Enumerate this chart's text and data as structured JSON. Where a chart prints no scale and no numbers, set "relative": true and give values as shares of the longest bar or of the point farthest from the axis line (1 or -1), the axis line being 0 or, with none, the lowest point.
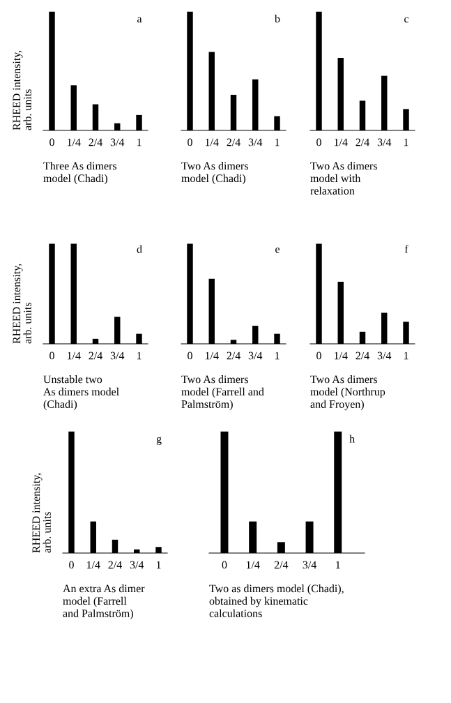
{
  "chart_data": [
    {
      "type": "bar",
      "relative": true,
      "categories": [
        "0",
        "1/4",
        "2/4",
        "3/4",
        "1"
      ],
      "values": [
        1,
        0.38,
        0.22,
        0.06,
        0.13
      ],
      "color": "#000000",
      "ylabel": "RHEED intensity,\narb. units",
      "xlabel": "Three As dimers\nmodel (Chadi)",
      "annotations": [
        "a"
      ],
      "grid": false,
      "legend": false
    },
    {
      "type": "bar",
      "relative": true,
      "categories": [
        "0",
        "1/4",
        "2/4",
        "3/4",
        "1"
      ],
      "values": [
        1,
        0.66,
        0.3,
        0.43,
        0.12
      ],
      "color": "#000000",
      "xlabel": "Two As dimers\nmodel (Chadi)",
      "annotations": [
        "b"
      ],
      "grid": false,
      "legend": false
    },
    {
      "type": "bar",
      "relative": true,
      "categories": [
        "0",
        "1/4",
        "2/4",
        "3/4",
        "1"
      ],
      "values": [
        1,
        0.61,
        0.25,
        0.46,
        0.18
      ],
      "color": "#000000",
      "xlabel": "Two As dimers\nmodel with\nrelaxation",
      "annotations": [
        "c"
      ],
      "grid": false,
      "legend": false
    },
    {
      "type": "bar",
      "relative": true,
      "categories": [
        "0",
        "1/4",
        "2/4",
        "3/4",
        "1"
      ],
      "values": [
        1,
        1,
        0.05,
        0.27,
        0.1
      ],
      "color": "#000000",
      "ylabel": "RHEED intensity,\narb. units",
      "xlabel": "Unstable two\nAs dimers model\n(Chadi)",
      "annotations": [
        "d"
      ],
      "grid": false,
      "legend": false
    },
    {
      "type": "bar",
      "relative": true,
      "categories": [
        "0",
        "1/4",
        "2/4",
        "3/4",
        "1"
      ],
      "values": [
        1,
        0.65,
        0.04,
        0.18,
        0.1
      ],
      "color": "#000000",
      "xlabel": "Two As dimers\nmodel (Farrell and\nPalmström)",
      "annotations": [
        "e"
      ],
      "grid": false,
      "legend": false
    },
    {
      "type": "bar",
      "relative": true,
      "categories": [
        "0",
        "1/4",
        "2/4",
        "3/4",
        "1"
      ],
      "values": [
        1,
        0.62,
        0.12,
        0.31,
        0.22
      ],
      "color": "#000000",
      "xlabel": "Two As dimers\nmodel (Northrup\nand Froyen)",
      "annotations": [
        "f"
      ],
      "grid": false,
      "legend": false
    },
    {
      "type": "bar",
      "relative": true,
      "categories": [
        "0",
        "1/4",
        "2/4",
        "3/4",
        "1"
      ],
      "values": [
        1,
        0.26,
        0.11,
        0.03,
        0.05
      ],
      "color": "#000000",
      "ylabel": "RHEED intensity,\narb. units",
      "xlabel": "An extra As dimer\nmodel (Farrell\nand Palmström)",
      "annotations": [
        "g"
      ],
      "grid": false,
      "legend": false
    },
    {
      "type": "bar",
      "relative": true,
      "categories": [
        "0",
        "1/4",
        "2/4",
        "3/4",
        "1"
      ],
      "values": [
        1,
        0.26,
        0.09,
        0.26,
        1
      ],
      "color": "#000000",
      "xlabel": "Two as dimers model (Chadi),\nobtained by kinematic\ncalculations",
      "annotations": [
        "h"
      ],
      "grid": false,
      "legend": false
    }
  ]
}
